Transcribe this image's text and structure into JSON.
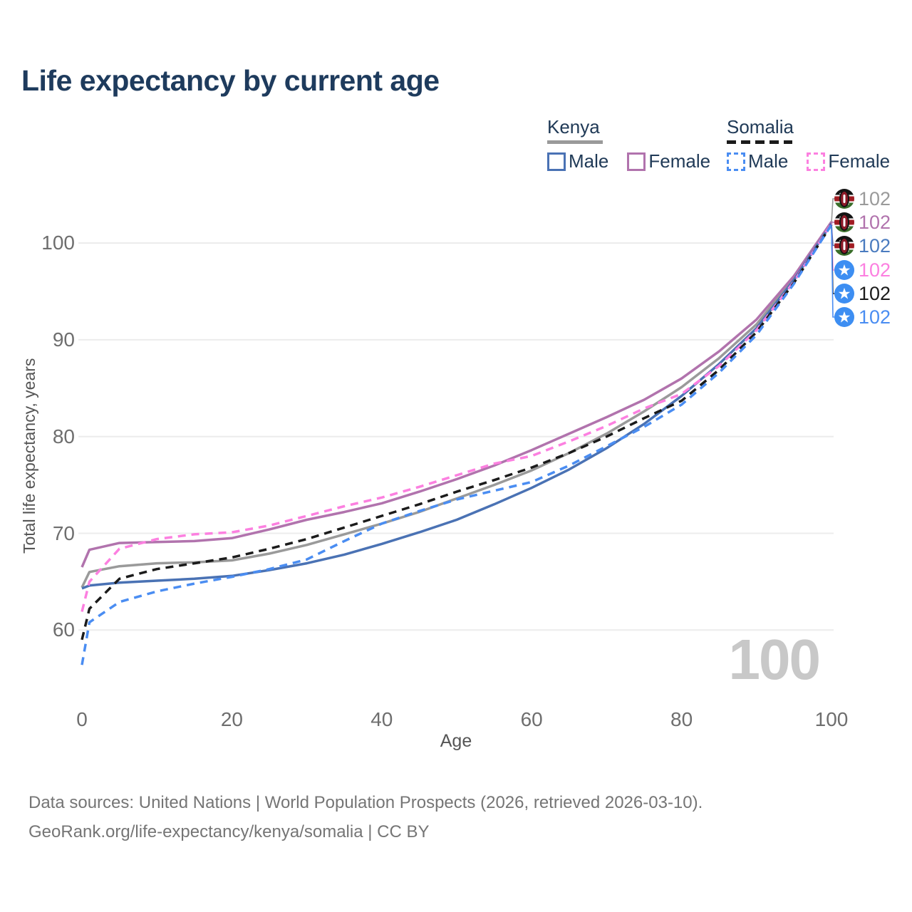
{
  "title": "Life expectancy by current age",
  "legend": {
    "kenya": {
      "label": "Kenya",
      "male_label": "Male",
      "female_label": "Female",
      "underline_color": "#9a9a9a",
      "male_color": "#4a72b4",
      "female_color": "#b173ad"
    },
    "somalia": {
      "label": "Somalia",
      "male_label": "Male",
      "female_label": "Female",
      "underline_color": "#1b1b1b",
      "male_color": "#4a8df2",
      "female_color": "#fc80e0"
    }
  },
  "watermark_value": "100",
  "footer": {
    "line1": "Data sources: United Nations | World Population Prospects (2026, retrieved 2026-03-10).",
    "line2": "GeoRank.org/life-expectancy/kenya/somalia | CC BY"
  },
  "chart_data": {
    "type": "line",
    "title": "Life expectancy by current age",
    "xlabel": "Age",
    "ylabel": "Total life expectancy, years",
    "xlim": [
      0,
      100
    ],
    "ylim": [
      55,
      103
    ],
    "xticks": [
      0,
      20,
      40,
      60,
      80,
      100
    ],
    "yticks": [
      60,
      70,
      80,
      90,
      100
    ],
    "grid": "horizontal",
    "legend_position": "top-right",
    "current_age_frame": 100,
    "x": [
      0,
      1,
      5,
      10,
      15,
      20,
      25,
      30,
      35,
      40,
      45,
      50,
      55,
      60,
      65,
      70,
      75,
      80,
      85,
      90,
      95,
      100
    ],
    "series": [
      {
        "name": "Kenya (both sexes)",
        "country": "Kenya",
        "sex": "both",
        "flag": "kenya",
        "color": "#9a9a9a",
        "dashed": false,
        "end_label": "102",
        "values": [
          64.4,
          66.0,
          66.6,
          66.9,
          67.0,
          67.2,
          67.9,
          68.8,
          69.9,
          71.0,
          72.2,
          73.6,
          75.0,
          76.5,
          78.3,
          80.3,
          82.6,
          85.1,
          88.1,
          91.6,
          96.4,
          102.1
        ]
      },
      {
        "name": "Kenya Female",
        "country": "Kenya",
        "sex": "female",
        "flag": "kenya",
        "color": "#b173ad",
        "dashed": false,
        "end_label": "102",
        "values": [
          66.5,
          68.3,
          69.0,
          69.1,
          69.2,
          69.5,
          70.4,
          71.4,
          72.2,
          73.1,
          74.3,
          75.6,
          77.0,
          78.6,
          80.3,
          82.0,
          83.8,
          86.0,
          88.8,
          92.1,
          96.6,
          102.2
        ]
      },
      {
        "name": "Kenya Male",
        "country": "Kenya",
        "sex": "male",
        "flag": "kenya",
        "color": "#4a72b4",
        "dashed": false,
        "end_label": "102",
        "values": [
          64.3,
          64.6,
          64.9,
          65.1,
          65.3,
          65.6,
          66.2,
          66.9,
          67.8,
          68.9,
          70.1,
          71.4,
          73.0,
          74.7,
          76.6,
          78.8,
          81.3,
          84.2,
          87.5,
          91.2,
          96.2,
          102.0
        ]
      },
      {
        "name": "Somalia Female",
        "country": "Somalia",
        "sex": "female",
        "flag": "somalia",
        "color": "#fc80e0",
        "dashed": true,
        "end_label": "102",
        "values": [
          61.9,
          65.0,
          68.4,
          69.4,
          69.9,
          70.1,
          70.8,
          71.8,
          72.8,
          73.7,
          74.8,
          76.0,
          77.2,
          78.0,
          79.5,
          81.1,
          82.9,
          84.4,
          87.3,
          91.0,
          96.0,
          102.0
        ]
      },
      {
        "name": "Somalia (both sexes)",
        "country": "Somalia",
        "sex": "both",
        "flag": "somalia",
        "color": "#1b1b1b",
        "dashed": true,
        "end_label": "102",
        "values": [
          59.0,
          62.2,
          65.3,
          66.3,
          66.9,
          67.5,
          68.4,
          69.4,
          70.6,
          71.8,
          73.0,
          74.3,
          75.5,
          76.8,
          78.3,
          80.0,
          81.9,
          83.7,
          86.9,
          90.8,
          95.9,
          101.9
        ]
      },
      {
        "name": "Somalia Male",
        "country": "Somalia",
        "sex": "male",
        "flag": "somalia",
        "color": "#4a8df2",
        "dashed": true,
        "end_label": "102",
        "values": [
          56.4,
          60.8,
          62.9,
          64.0,
          64.8,
          65.5,
          66.3,
          67.3,
          69.2,
          71.0,
          72.3,
          73.5,
          74.4,
          75.3,
          77.0,
          79.0,
          81.0,
          83.3,
          86.6,
          90.5,
          95.8,
          101.9
        ]
      }
    ]
  }
}
